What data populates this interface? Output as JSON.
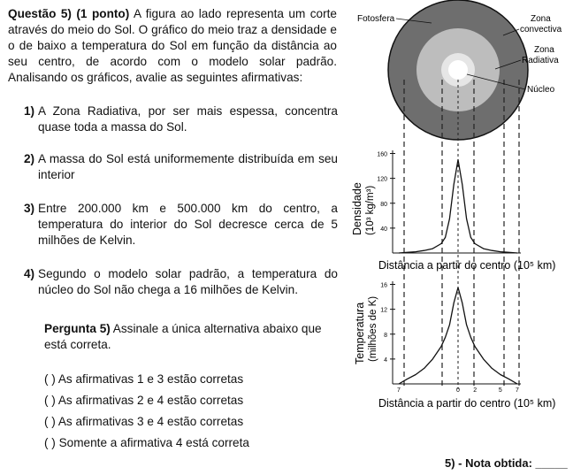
{
  "question": {
    "label": "Questão 5) (1 ponto)",
    "stem": " A figura ao lado representa um corte através do meio do Sol. O gráfico do meio traz a densidade e o de baixo a temperatura do Sol em função da distância ao seu centro, de acordo com o modelo solar padrão. Analisando os gráficos, avalie as seguintes afirmativas:"
  },
  "statements": [
    {
      "num": "1)",
      "text": "A Zona Radiativa, por ser mais espessa, concentra quase toda a massa do Sol."
    },
    {
      "num": "2)",
      "text": "A massa do Sol está uniformemente distribuída em seu interior"
    },
    {
      "num": "3)",
      "text": "Entre 200.000 km e 500.000 km do centro, a temperatura do interior do Sol decresce cerca de 5 milhões de Kelvin."
    },
    {
      "num": "4)",
      "text": "Segundo o modelo solar padrão, a temperatura do núcleo do Sol não chega a 16 milhões de Kelvin."
    }
  ],
  "prompt": {
    "label": "Pergunta 5)",
    "text": " Assinale a única alternativa abaixo que está correta."
  },
  "options": [
    "(   ) As afirmativas 1 e 3 estão corretas",
    "(   ) As afirmativas 2 e 4 estão corretas",
    "(   ) As afirmativas 3 e 4 estão corretas",
    "(   ) Somente a afirmativa 4 está correta"
  ],
  "grade_label": "5) - Nota obtida: _____",
  "figure": {
    "sun_labels": {
      "photosphere": "Fotosfera",
      "convective": [
        "Zona",
        "convectiva"
      ],
      "radiative": [
        "Zona",
        "Radiativa"
      ],
      "core": "Núcleo"
    },
    "colors": {
      "outer": "#6e6e6e",
      "radiative": "#bdbdbd",
      "core": "#ffffff",
      "ring": "#e6e6e6"
    }
  },
  "chart_data": [
    {
      "type": "line",
      "ylabel": [
        "Densidade",
        "(10³ kg/m³)"
      ],
      "xlabel": "Distância a partir do centro (10⁵ km)",
      "yticks": [
        40,
        80,
        120,
        160
      ],
      "ylim": [
        0,
        165
      ],
      "xlim": [
        -7,
        7
      ],
      "x": [
        -7,
        -6,
        -5,
        -4,
        -3,
        -2,
        -1.5,
        -1,
        -0.5,
        0,
        0.5,
        1,
        1.5,
        2,
        3,
        4,
        5,
        6,
        7
      ],
      "y": [
        0,
        1,
        2,
        4,
        7,
        15,
        25,
        55,
        110,
        150,
        110,
        55,
        25,
        15,
        7,
        4,
        2,
        1,
        0
      ]
    },
    {
      "type": "line",
      "ylabel": [
        "Temperatura",
        "(milhões de K)"
      ],
      "xlabel": "Distância a partir do centro (10⁵ km)",
      "yticks": [
        4,
        8,
        12,
        16
      ],
      "xticks": [
        "7",
        "0",
        "2",
        "5",
        "7"
      ],
      "xtick_values": [
        -7,
        0,
        2,
        5,
        7
      ],
      "ylim": [
        0,
        16.5
      ],
      "xlim": [
        -7,
        7
      ],
      "x": [
        -7,
        -6,
        -5,
        -4,
        -3,
        -2,
        -1.5,
        -1,
        -0.5,
        0,
        0.5,
        1,
        1.5,
        2,
        3,
        4,
        5,
        6,
        7
      ],
      "y": [
        0,
        0.8,
        1.5,
        2.5,
        4,
        6,
        7.5,
        9.5,
        13,
        15.5,
        13,
        9.5,
        7.5,
        6,
        4,
        2.5,
        1.5,
        0.8,
        0
      ]
    }
  ]
}
